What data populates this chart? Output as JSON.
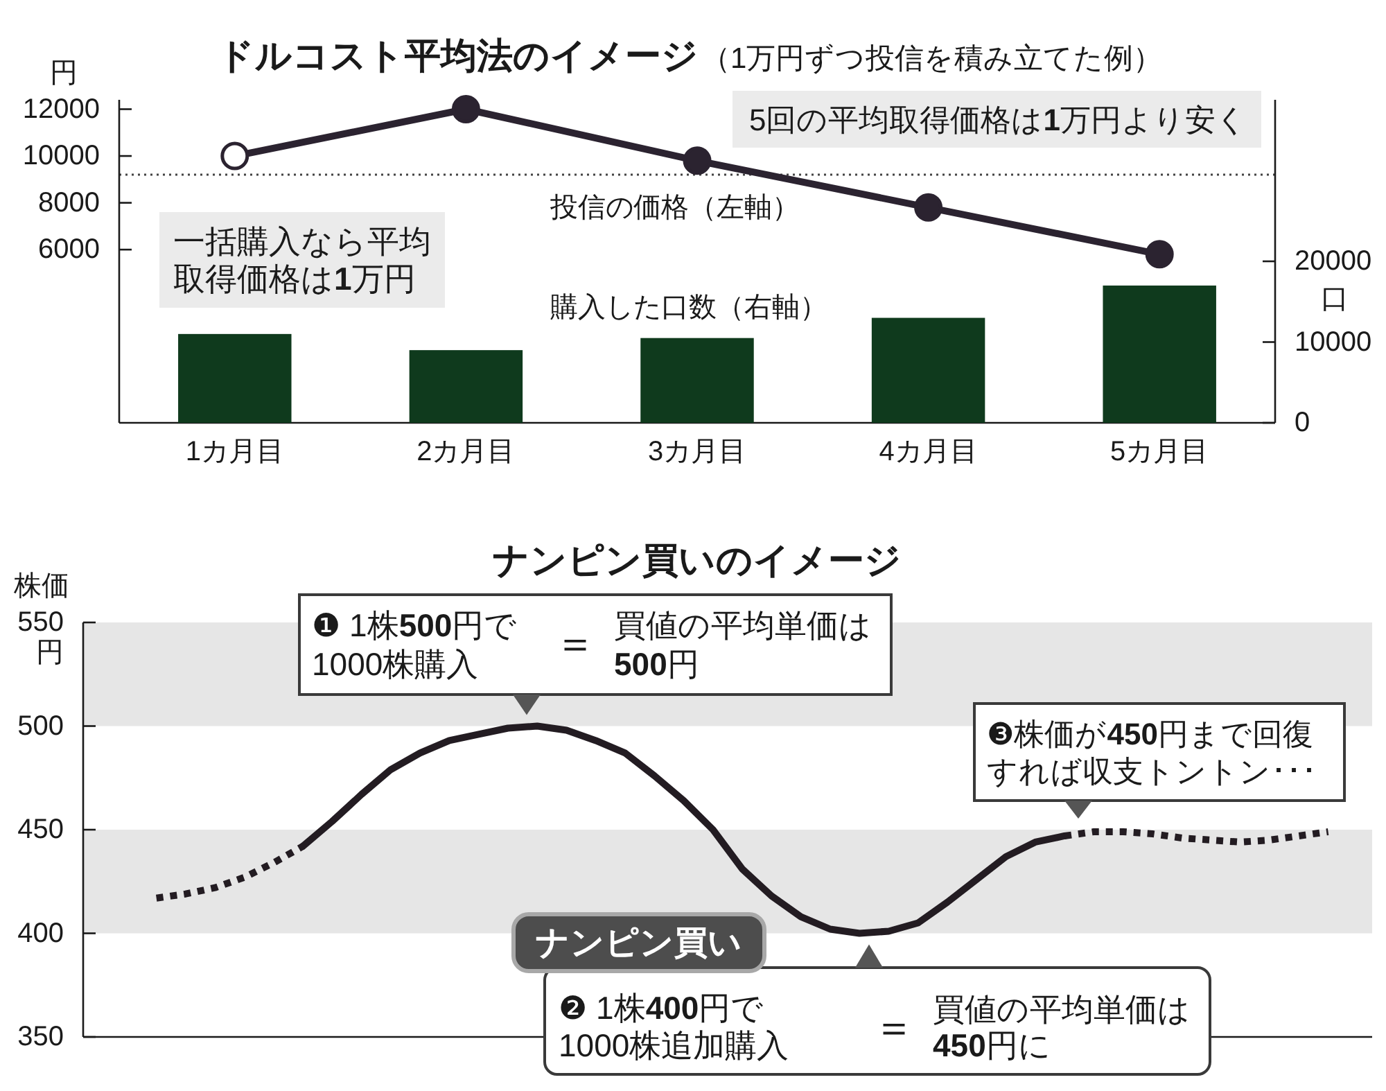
{
  "chart_data": [
    {
      "type": "bar",
      "title": "ドルコスト平均法のイメージ",
      "subtitle": "（1万円ずつ投信を積み立てた例）",
      "ylabel": "円",
      "y2label": "口",
      "categories": [
        "1カ月目",
        "2カ月目",
        "3カ月目",
        "4カ月目",
        "5カ月目"
      ],
      "series": [
        {
          "name": "購入した口数（右軸）",
          "axis": "y2",
          "color": "#0f3a1d",
          "values": [
            11000,
            9000,
            10500,
            13000,
            17000
          ]
        },
        {
          "name": "投信の価格（左軸）",
          "type": "line",
          "color": "#2b2330",
          "colors": [
            "#ffffff",
            "#2b2330",
            "#2b2330",
            "#2b2330",
            "#2b2330"
          ],
          "marker": "circle",
          "values": [
            10000,
            12000,
            9800,
            7800,
            5800
          ]
        }
      ],
      "ylim": [
        -1400,
        12400
      ],
      "yticks": [
        6000,
        8000,
        10000,
        12000
      ],
      "y2lim": [
        0,
        40000
      ],
      "y2ticks": [
        0,
        10000,
        20000
      ],
      "ref_lines": [
        {
          "axis": "y",
          "value": 9200,
          "label": "5回の平均取得価格は1万円より安く",
          "line_style": "dotted",
          "color": "#444444"
        }
      ],
      "annotations": [
        "一括購入なら平均取得価格は1万円"
      ]
    },
    {
      "type": "line",
      "title": "ナンピン買いのイメージ",
      "ylabel": "株価",
      "categories": [
        null,
        null,
        null,
        null,
        null,
        null,
        null,
        null,
        null,
        null,
        null,
        null,
        null,
        null,
        null,
        null,
        null,
        null,
        null,
        null,
        null,
        null,
        null,
        null,
        null,
        null,
        null,
        null,
        null,
        null,
        null,
        null,
        null,
        null,
        null,
        null,
        null,
        null,
        null,
        null,
        null,
        null,
        null,
        null
      ],
      "series": [
        {
          "color": "#231c22",
          "line_style": "dotted",
          "values": [
            null,
            null,
            417,
            419,
            422,
            427,
            434,
            442,
            null,
            null,
            null,
            null,
            null,
            null,
            null,
            null,
            null,
            null,
            null,
            null,
            null,
            null,
            null,
            null,
            null,
            null,
            null,
            null,
            null,
            null,
            null,
            null,
            null,
            null,
            null,
            null,
            null,
            null,
            null,
            null,
            null,
            null,
            null,
            null
          ]
        },
        {
          "color": "#231c22",
          "line_style": "solid",
          "values": [
            null,
            null,
            null,
            null,
            null,
            null,
            null,
            442,
            454,
            467,
            479,
            487,
            493,
            496,
            499,
            500,
            498,
            493,
            487,
            476,
            464,
            450,
            431,
            418,
            408,
            402,
            400,
            401,
            405,
            415,
            426,
            437,
            444,
            447,
            null,
            null,
            null,
            null,
            null,
            null,
            null,
            null,
            null,
            null
          ]
        },
        {
          "color": "#231c22",
          "line_style": "dotted",
          "values": [
            null,
            null,
            null,
            null,
            null,
            null,
            null,
            null,
            null,
            null,
            null,
            null,
            null,
            null,
            null,
            null,
            null,
            null,
            null,
            null,
            null,
            null,
            null,
            null,
            null,
            null,
            null,
            null,
            null,
            null,
            null,
            null,
            null,
            447,
            449,
            449,
            448,
            446,
            445,
            444,
            445,
            447,
            449,
            null
          ]
        }
      ],
      "ylim": [
        350,
        550
      ],
      "yticks": [
        350,
        400,
        450,
        500,
        {
          "value": 550,
          "label": "550円"
        }
      ],
      "bands": [
        {
          "axis": "y",
          "from": 500,
          "to": 550,
          "color": "#e6e6e6"
        },
        {
          "axis": "y",
          "from": 400,
          "to": 450,
          "color": "#e6e6e6"
        }
      ],
      "annotations": [
        {
          "text": "❶ 1株500円で1000株購入",
          "y": 500
        },
        "＝",
        "買値の平均単価は500円",
        {
          "text": "❸株価が450円まで回復すれば収支トントン･･･",
          "y": 450
        },
        "ナンピン買い",
        {
          "text": "❷ 1株400円で1000株追加購入",
          "y": 400
        },
        "＝",
        "買値の平均単価は450円に"
      ]
    }
  ]
}
